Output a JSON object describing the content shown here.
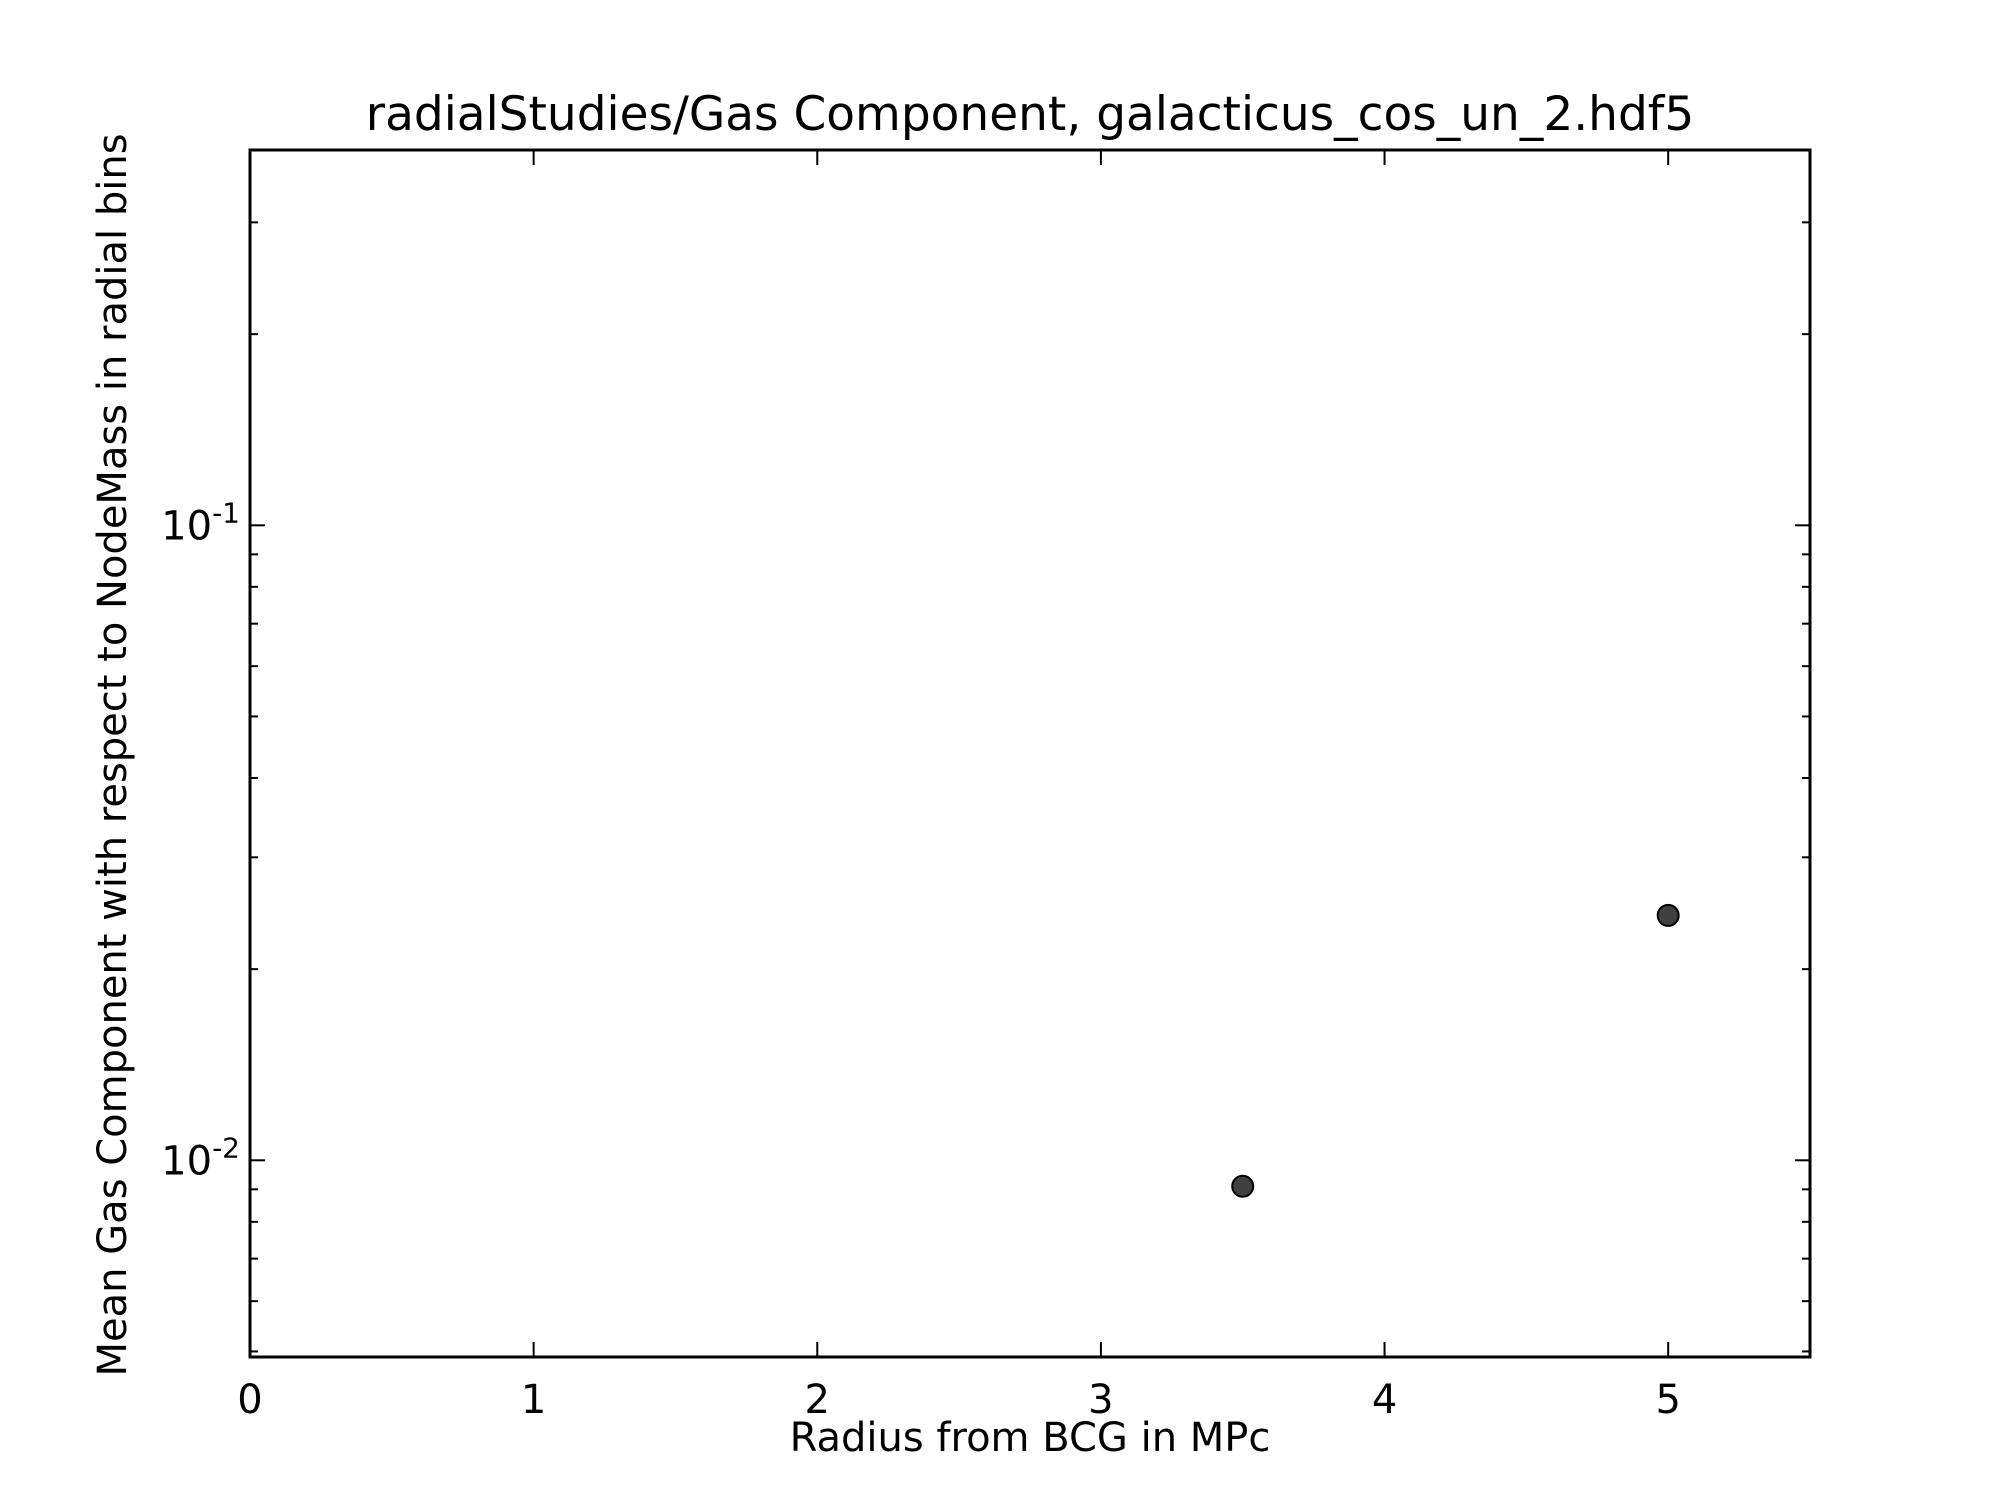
{
  "chart_data": {
    "type": "scatter",
    "title": "radialStudies/Gas Component, galacticus_cos_un_2.hdf5",
    "xlabel": "Radius from BCG in MPc",
    "ylabel": "Mean Gas Component with respect to NodeMass in radial bins",
    "xlim": [
      0,
      5.5
    ],
    "ylim": [
      0.0049,
      0.39
    ],
    "yscale": "log",
    "grid": false,
    "x_ticks": [
      0,
      1,
      2,
      3,
      4,
      5
    ],
    "y_ticks": [
      {
        "value": 0.01,
        "base": "10",
        "exp": "-2"
      },
      {
        "value": 0.1,
        "base": "10",
        "exp": "-1"
      }
    ],
    "series": [
      {
        "x": [
          3.5,
          5.0
        ],
        "y": [
          0.0091,
          0.0243
        ]
      }
    ],
    "marker_color": "#404040"
  }
}
